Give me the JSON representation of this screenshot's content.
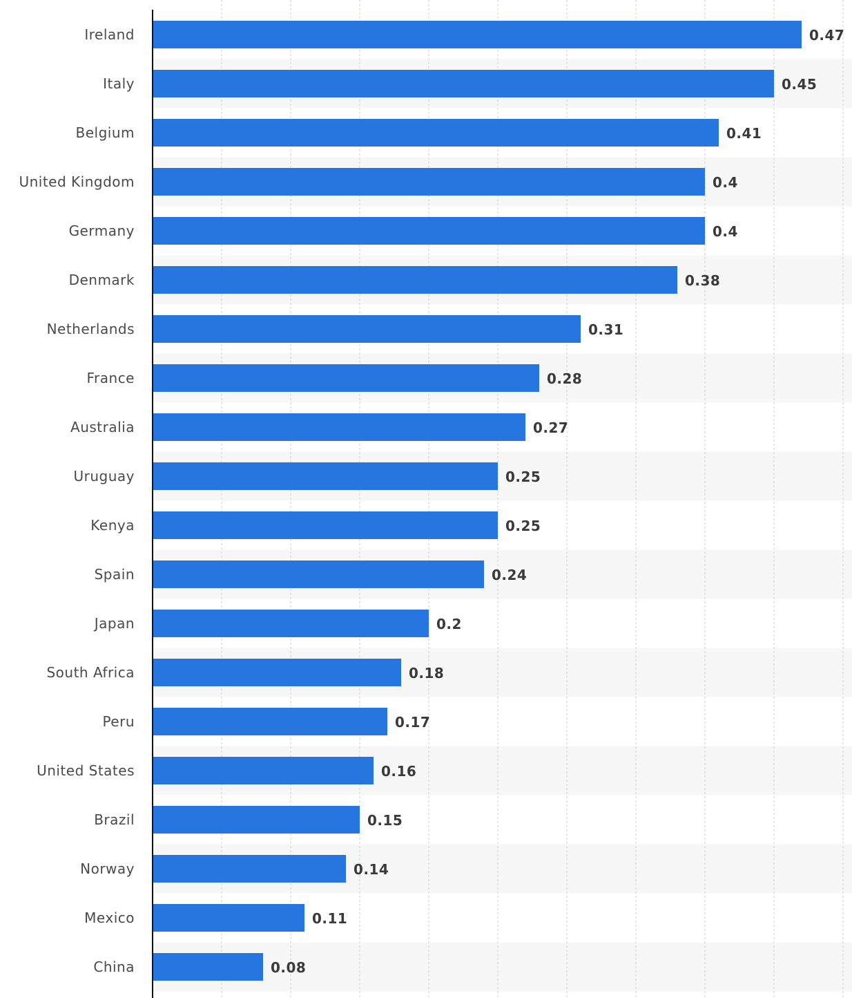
{
  "colors": {
    "bar": "#2775de",
    "band": "#f7f7f7",
    "grid": "#cfcfcf",
    "axis": "#111111"
  },
  "chart_data": {
    "type": "bar",
    "orientation": "horizontal",
    "categories": [
      "Ireland",
      "Italy",
      "Belgium",
      "United Kingdom",
      "Germany",
      "Denmark",
      "Netherlands",
      "France",
      "Australia",
      "Uruguay",
      "Kenya",
      "Spain",
      "Japan",
      "South Africa",
      "Peru",
      "United States",
      "Brazil",
      "Norway",
      "Mexico",
      "China"
    ],
    "values": [
      0.47,
      0.45,
      0.41,
      0.4,
      0.4,
      0.38,
      0.31,
      0.28,
      0.27,
      0.25,
      0.25,
      0.24,
      0.2,
      0.18,
      0.17,
      0.16,
      0.15,
      0.14,
      0.11,
      0.08
    ],
    "value_labels": [
      "0.47",
      "0.45",
      "0.41",
      "0.4",
      "0.4",
      "0.38",
      "0.31",
      "0.28",
      "0.27",
      "0.25",
      "0.25",
      "0.24",
      "0.2",
      "0.18",
      "0.17",
      "0.16",
      "0.15",
      "0.14",
      "0.11",
      "0.08"
    ],
    "xlim": [
      0,
      0.5
    ],
    "grid_step": 0.05,
    "grid": true,
    "title": "",
    "xlabel": "",
    "ylabel": ""
  }
}
